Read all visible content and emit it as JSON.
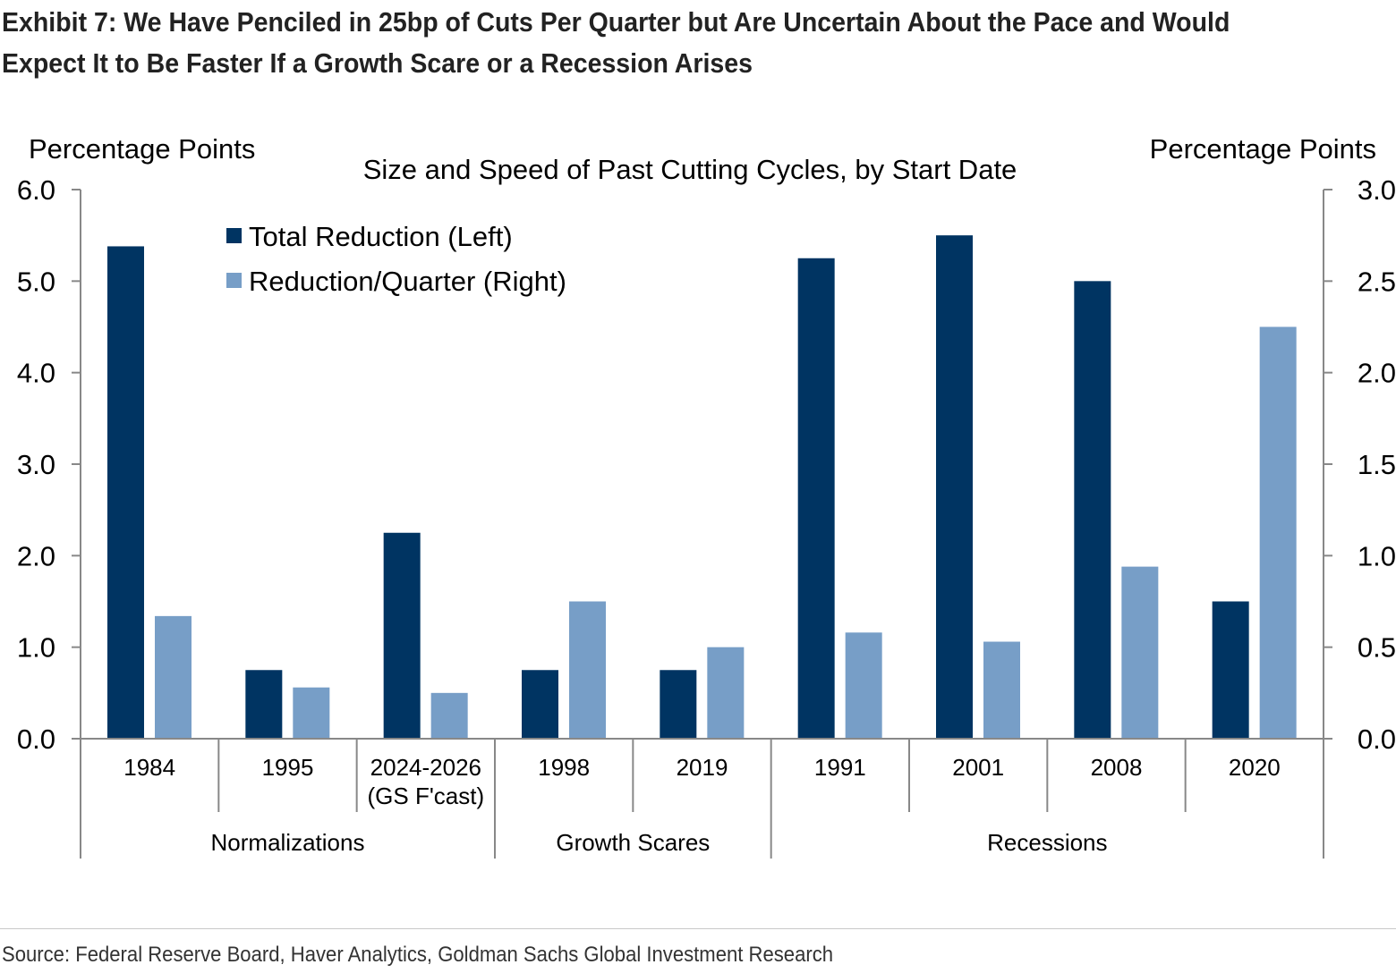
{
  "title": "Exhibit 7: We Have Penciled in 25bp of Cuts Per Quarter but Are Uncertain About the Pace and Would Expect It to Be Faster If a Growth Scare or a Recession Arises",
  "source": "Source: Federal Reserve Board, Haver Analytics, Goldman Sachs Global Investment Research",
  "chart_data": {
    "type": "bar",
    "subtitle": "Size and Speed of Past Cutting Cycles, by Start Date",
    "ylabel_left": "Percentage Points",
    "ylabel_right": "Percentage Points",
    "ylim_left": [
      0,
      6
    ],
    "ylim_right": [
      0,
      3
    ],
    "yticks_left": [
      "0.0",
      "1.0",
      "2.0",
      "3.0",
      "4.0",
      "5.0",
      "6.0"
    ],
    "yticks_right": [
      "0.0",
      "0.5",
      "1.0",
      "1.5",
      "2.0",
      "2.5",
      "3.0"
    ],
    "grid": false,
    "legend_position": "top-left",
    "categories": [
      [
        "1984"
      ],
      [
        "1995"
      ],
      [
        "2024-2026",
        "(GS F'cast)"
      ],
      [
        "1998"
      ],
      [
        "2019"
      ],
      [
        "1991"
      ],
      [
        "2001"
      ],
      [
        "2008"
      ],
      [
        "2020"
      ]
    ],
    "groups": [
      {
        "label": "Normalizations",
        "count": 3
      },
      {
        "label": "Growth Scares",
        "count": 2
      },
      {
        "label": "Recessions",
        "count": 4
      }
    ],
    "series": [
      {
        "name": "Total Reduction (Left)",
        "axis": "left",
        "color": "#003462",
        "values": [
          5.38,
          0.75,
          2.25,
          0.75,
          0.75,
          5.25,
          5.5,
          5.0,
          1.5
        ]
      },
      {
        "name": "Reduction/Quarter (Right)",
        "axis": "right",
        "color": "#779ec7",
        "values": [
          0.67,
          0.28,
          0.25,
          0.75,
          0.5,
          0.58,
          0.53,
          0.94,
          2.25
        ]
      }
    ]
  }
}
